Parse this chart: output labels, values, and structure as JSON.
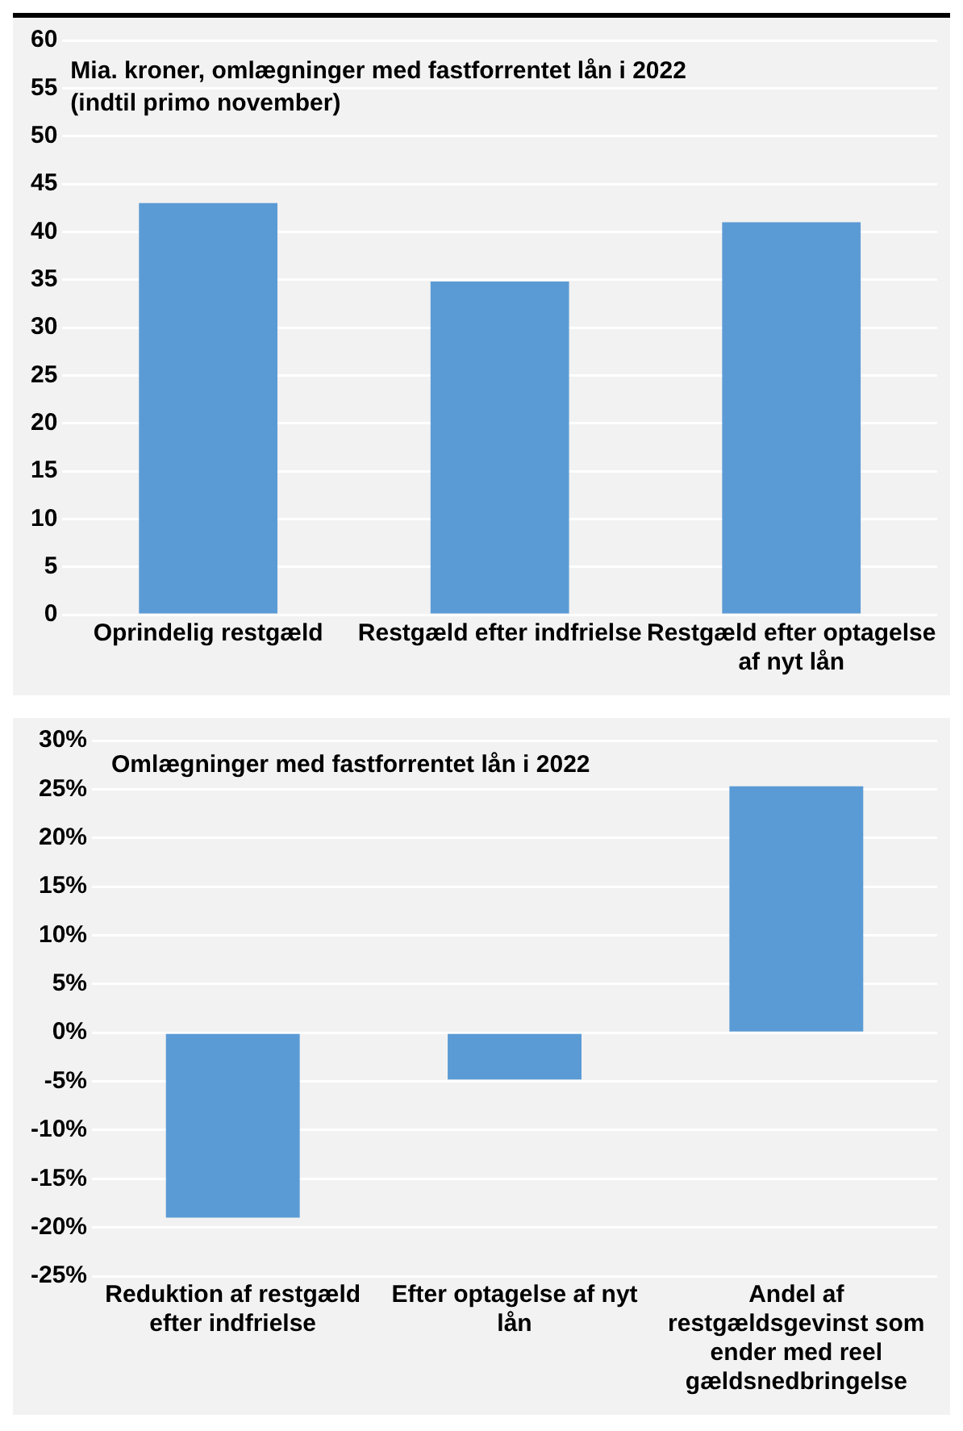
{
  "chart_data": [
    {
      "type": "bar",
      "title": "Mia. kroner, omlægninger med fastforrentet lån i 2022 (indtil primo november)",
      "categories": [
        "Oprindelig restgæld",
        "Restgæld efter indfrielse",
        "Restgæld efter optagelse af nyt lån"
      ],
      "values": [
        43,
        34.8,
        41
      ],
      "color": "#5b9bd5",
      "ylim": [
        0,
        60
      ],
      "yticks": [
        0,
        5,
        10,
        15,
        20,
        25,
        30,
        35,
        40,
        45,
        50,
        55,
        60
      ],
      "grid": "y",
      "legend": false
    },
    {
      "type": "bar",
      "title": "Omlægninger med fastforrentet lån i 2022",
      "categories": [
        "Reduktion af restgæld efter indfrielse",
        "Efter optagelse af nyt lån",
        "Andel af restgældsgevinst som ender med reel gældsnedbringelse"
      ],
      "values": [
        -19,
        -4.8,
        25.3
      ],
      "color": "#5b9bd5",
      "ylim": [
        -25,
        30
      ],
      "yticks": [
        {
          "value": -25,
          "label": "-25%"
        },
        {
          "value": -20,
          "label": "-20%"
        },
        {
          "value": -15,
          "label": "-15%"
        },
        {
          "value": -10,
          "label": "-10%"
        },
        {
          "value": -5,
          "label": "-5%"
        },
        {
          "value": 0,
          "label": "0%"
        },
        {
          "value": 5,
          "label": "5%"
        },
        {
          "value": 10,
          "label": "10%"
        },
        {
          "value": 15,
          "label": "15%"
        },
        {
          "value": 20,
          "label": "20%"
        },
        {
          "value": 25,
          "label": "25%"
        },
        {
          "value": 30,
          "label": "30%"
        }
      ],
      "grid": "y",
      "legend": false
    }
  ]
}
